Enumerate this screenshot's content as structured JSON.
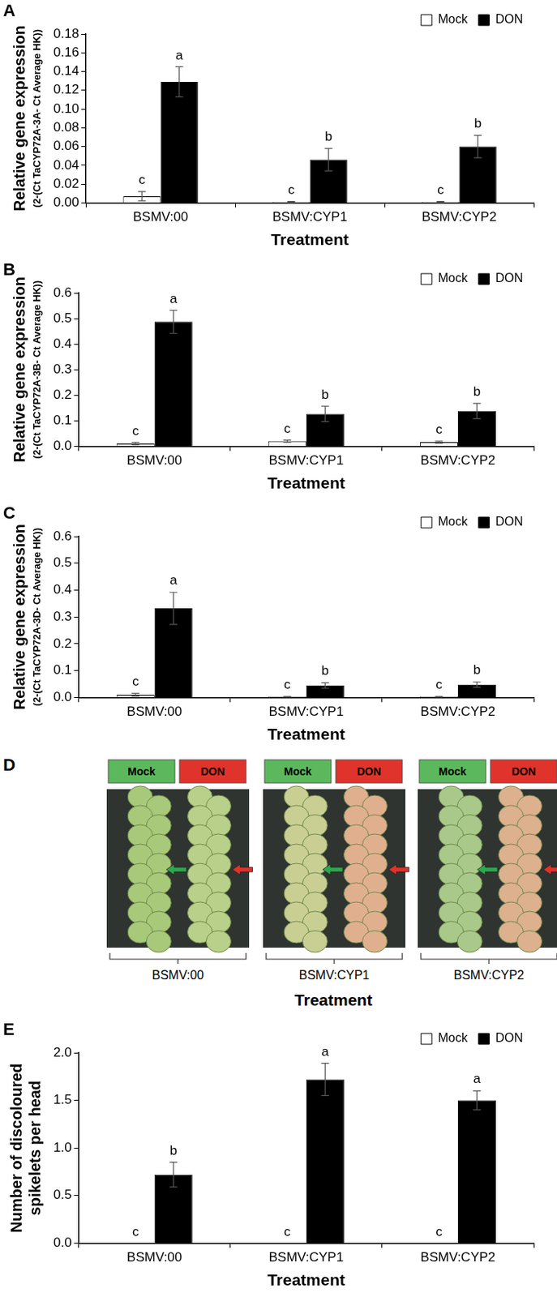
{
  "chart_data": [
    {
      "type": "bar",
      "title": "A",
      "y_label": [
        "Relative gene expression",
        "(2-(Ct TaCYP72A-3A- Ct Average HK))"
      ],
      "x_label": "Treatment",
      "categories": [
        "BSMV:00",
        "BSMV:CYP1",
        "BSMV:CYP2"
      ],
      "series": [
        {
          "name": "Mock",
          "color": "#ffffff",
          "values": [
            0.007,
            0.001,
            0.001
          ],
          "errors": [
            0.005,
            0.0005,
            0.0005
          ],
          "annotations": [
            "c",
            "c",
            "c"
          ]
        },
        {
          "name": "DON",
          "color": "#000000",
          "values": [
            0.129,
            0.046,
            0.06
          ],
          "errors": [
            0.016,
            0.012,
            0.012
          ],
          "annotations": [
            "a",
            "b",
            "b"
          ]
        }
      ],
      "ylim": [
        0,
        0.18
      ],
      "yticks": [
        {
          "value": 0,
          "label": "0.00"
        },
        0.02,
        0.04,
        0.06,
        0.08,
        {
          "value": 0.1,
          "label": "0.10"
        },
        0.12,
        0.14,
        0.16,
        0.18
      ],
      "grid": false,
      "legend": "top-right"
    },
    {
      "type": "bar",
      "title": "B",
      "y_label": [
        "Relative gene expression",
        "(2-(Ct TaCYP72A-3B- Ct Average HK))"
      ],
      "x_label": "Treatment",
      "categories": [
        "BSMV:00",
        "BSMV:CYP1",
        "BSMV:CYP2"
      ],
      "series": [
        {
          "name": "Mock",
          "color": "#ffffff",
          "values": [
            0.01,
            0.02,
            0.016
          ],
          "errors": [
            0.005,
            0.004,
            0.004
          ],
          "annotations": [
            "c",
            "c",
            "c"
          ]
        },
        {
          "name": "DON",
          "color": "#000000",
          "values": [
            0.487,
            0.127,
            0.138
          ],
          "errors": [
            0.045,
            0.03,
            0.03
          ],
          "annotations": [
            "a",
            "b",
            "b"
          ]
        }
      ],
      "ylim": [
        0,
        0.6
      ],
      "yticks": [
        {
          "value": 0,
          "label": "0.0"
        },
        0.1,
        0.2,
        0.3,
        0.4,
        0.5,
        0.6
      ],
      "grid": false,
      "legend": "top-right"
    },
    {
      "type": "bar",
      "title": "C",
      "y_label": [
        "Relative gene expression",
        "(2-(Ct TaCYP72A-3D- Ct Average HK))"
      ],
      "x_label": "Treatment",
      "categories": [
        "BSMV:00",
        "BSMV:CYP1",
        "BSMV:CYP2"
      ],
      "series": [
        {
          "name": "Mock",
          "color": "#ffffff",
          "values": [
            0.01,
            0.003,
            0.003
          ],
          "errors": [
            0.005,
            0.001,
            0.001
          ],
          "annotations": [
            "c",
            "c",
            "c"
          ]
        },
        {
          "name": "DON",
          "color": "#000000",
          "values": [
            0.332,
            0.045,
            0.048
          ],
          "errors": [
            0.06,
            0.01,
            0.01
          ],
          "annotations": [
            "a",
            "b",
            "b"
          ]
        }
      ],
      "ylim": [
        0,
        0.6
      ],
      "yticks": [
        {
          "value": 0,
          "label": "0.0"
        },
        0.1,
        0.2,
        0.3,
        0.4,
        0.5,
        0.6
      ],
      "grid": false,
      "legend": "top-right"
    },
    {
      "type": "bar",
      "title": "E",
      "y_label": [
        "Number of discoloured",
        "spikelets per head"
      ],
      "x_label": "Treatment",
      "categories": [
        "BSMV:00",
        "BSMV:CYP1",
        "BSMV:CYP2"
      ],
      "series": [
        {
          "name": "Mock",
          "color": "#ffffff",
          "values": [
            0,
            0,
            0
          ],
          "errors": [
            0,
            0,
            0
          ],
          "annotations": [
            "c",
            "c",
            "c"
          ]
        },
        {
          "name": "DON",
          "color": "#000000",
          "values": [
            0.72,
            1.72,
            1.5
          ],
          "errors": [
            0.13,
            0.17,
            0.1
          ],
          "annotations": [
            "b",
            "a",
            "a"
          ]
        }
      ],
      "ylim": [
        0,
        2
      ],
      "yticks": [
        {
          "value": 0,
          "label": "0.0"
        },
        0.5,
        {
          "value": 1,
          "label": "1.0"
        },
        1.5,
        {
          "value": 2,
          "label": "2.0"
        }
      ],
      "grid": false,
      "legend": "top-right"
    }
  ],
  "panel_D": {
    "title": "D",
    "x_label": "Treatment",
    "groups": [
      {
        "label": "BSMV:00",
        "tags": [
          "Mock",
          "DON"
        ]
      },
      {
        "label": "BSMV:CYP1",
        "tags": [
          "Mock",
          "DON"
        ]
      },
      {
        "label": "BSMV:CYP2",
        "tags": [
          "Mock",
          "DON"
        ]
      }
    ]
  }
}
